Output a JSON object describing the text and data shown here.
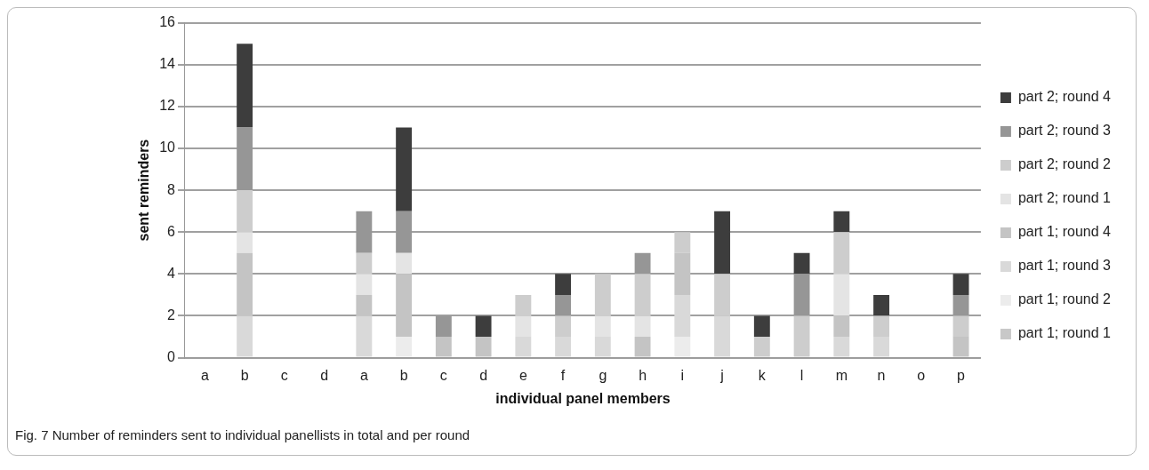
{
  "chart_data": {
    "type": "bar",
    "stacked": true,
    "xlabel": "individual panel members",
    "ylabel": "sent reminders",
    "categories": [
      "a",
      "b",
      "c",
      "d",
      "a",
      "b",
      "c",
      "d",
      "e",
      "f",
      "g",
      "h",
      "i",
      "j",
      "k",
      "l",
      "m",
      "n",
      "o",
      "p"
    ],
    "series": [
      {
        "name": "part 1; round 1",
        "color": "#c8c8c8",
        "values": [
          0,
          0,
          0,
          0,
          0,
          0,
          0,
          0,
          0,
          0,
          0,
          0,
          0,
          0,
          0,
          0,
          0,
          0,
          0,
          0
        ]
      },
      {
        "name": "part 1; round 2",
        "color": "#ececec",
        "values": [
          0,
          0,
          0,
          0,
          0,
          1,
          0,
          0,
          0,
          0,
          0,
          0,
          1,
          0,
          0,
          0,
          0,
          0,
          0,
          0
        ]
      },
      {
        "name": "part 1; round 3",
        "color": "#d9d9d9",
        "values": [
          0,
          2,
          0,
          0,
          2,
          0,
          0,
          0,
          1,
          1,
          1,
          0,
          2,
          2,
          0,
          0,
          1,
          1,
          0,
          0
        ]
      },
      {
        "name": "part 1; round 4",
        "color": "#c4c4c4",
        "values": [
          0,
          3,
          0,
          0,
          1,
          3,
          1,
          1,
          0,
          0,
          0,
          1,
          2,
          0,
          0,
          0,
          1,
          0,
          0,
          1
        ]
      },
      {
        "name": "part 2; round 1",
        "color": "#e4e4e4",
        "values": [
          0,
          1,
          0,
          0,
          1,
          1,
          0,
          0,
          1,
          0,
          1,
          1,
          0,
          0,
          0,
          0,
          2,
          0,
          0,
          0
        ]
      },
      {
        "name": "part 2; round 2",
        "color": "#cdcdcd",
        "values": [
          0,
          2,
          0,
          0,
          1,
          0,
          0,
          0,
          1,
          1,
          2,
          2,
          1,
          2,
          1,
          2,
          2,
          1,
          0,
          1
        ]
      },
      {
        "name": "part 2; round 3",
        "color": "#969696",
        "values": [
          0,
          3,
          0,
          0,
          2,
          2,
          1,
          0,
          0,
          1,
          0,
          1,
          0,
          0,
          0,
          2,
          0,
          0,
          0,
          1
        ]
      },
      {
        "name": "part 2; round 4",
        "color": "#3d3d3d",
        "values": [
          0,
          4,
          0,
          0,
          0,
          4,
          0,
          1,
          0,
          1,
          0,
          0,
          0,
          3,
          1,
          1,
          1,
          1,
          0,
          1
        ]
      }
    ],
    "ylim": [
      0,
      16
    ],
    "yticks": [
      0,
      2,
      4,
      6,
      8,
      10,
      12,
      14,
      16
    ],
    "grid": "y",
    "legend": "right",
    "annotations": [
      "Fig. 7 Number of reminders sent to individual panellists in total and per round"
    ]
  }
}
